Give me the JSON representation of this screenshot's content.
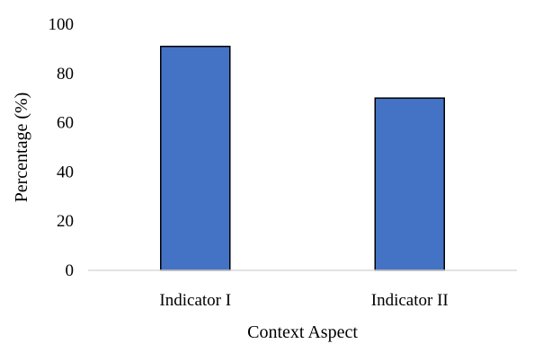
{
  "chart_data": {
    "type": "bar",
    "categories": [
      "Indicator I",
      "Indicator II"
    ],
    "values": [
      91,
      70
    ],
    "title": "",
    "xlabel": "Context Aspect",
    "ylabel": "Percentage (%)",
    "ylim": [
      0,
      100
    ],
    "yticks": [
      "0",
      "20",
      "40",
      "60",
      "80",
      "100"
    ],
    "grid": false,
    "legend": "none",
    "colors": {
      "bar_fill": "#4472C4",
      "bar_stroke": "#000000",
      "axis": "#d9d9d9"
    }
  }
}
